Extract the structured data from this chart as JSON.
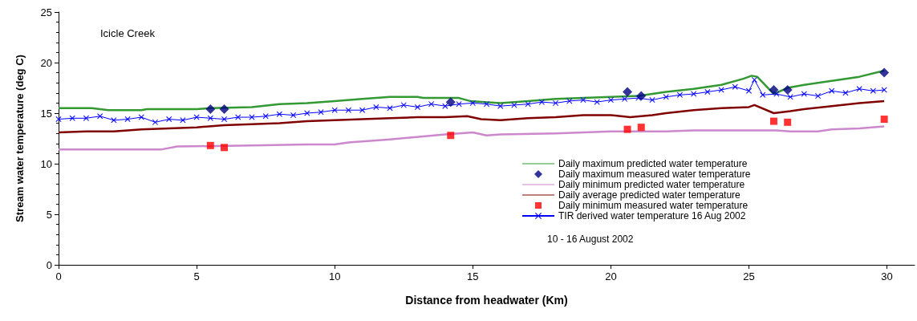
{
  "chart_data": {
    "type": "line",
    "title": "Icicle Creek",
    "xlabel": "Distance from headwater (Km)",
    "ylabel": "Stream water temperature (deg C)",
    "xlim": [
      0,
      31
    ],
    "xticks": [
      0,
      5,
      10,
      15,
      20,
      25,
      30
    ],
    "ylim": [
      0,
      25
    ],
    "yticks": [
      0,
      5,
      10,
      15,
      20,
      25
    ],
    "grid": false,
    "legend": "bottom right",
    "line_style": "solid",
    "annotations": [
      "10 - 16 August 2002"
    ],
    "series": [
      {
        "name": "Daily maximum predicted water temperature",
        "marker": "none",
        "color": "#339933",
        "x": [
          0,
          1.2,
          1.8,
          3,
          3.2,
          5,
          5.5,
          7,
          8,
          9,
          10,
          11,
          12,
          13,
          13.2,
          14.5,
          14.9,
          16,
          17,
          18,
          19,
          20,
          21,
          22,
          23,
          24,
          24.8,
          25.1,
          25.3,
          25.9,
          26.4,
          27,
          28,
          29,
          29.9
        ],
        "values": [
          15.5,
          15.5,
          15.3,
          15.3,
          15.4,
          15.4,
          15.5,
          15.6,
          15.9,
          16.0,
          16.2,
          16.4,
          16.6,
          16.6,
          16.5,
          16.5,
          16.2,
          16.0,
          16.2,
          16.4,
          16.5,
          16.6,
          16.7,
          17.1,
          17.4,
          17.8,
          18.4,
          18.7,
          18.6,
          16.9,
          17.5,
          17.8,
          18.2,
          18.6,
          19.2
        ]
      },
      {
        "name": "Daily maximum measured water temperature",
        "type": "scatter",
        "marker": "diamond",
        "color": "#000080",
        "x": [
          5.5,
          6,
          14.2,
          20.6,
          21.1,
          25.9,
          26.4,
          29.9
        ],
        "values": [
          15.4,
          15.4,
          16.1,
          17.1,
          16.7,
          17.3,
          17.3,
          19.0
        ]
      },
      {
        "name": "Daily minimum predicted water temperature",
        "marker": "none",
        "color": "#cc88cc",
        "x": [
          0,
          3.7,
          4.3,
          7,
          9,
          10,
          10.5,
          12,
          14,
          15,
          15.5,
          16,
          18,
          20,
          22,
          23,
          26,
          26.5,
          27.5,
          28,
          29,
          29.9
        ],
        "values": [
          11.4,
          11.4,
          11.7,
          11.8,
          11.9,
          11.9,
          12.1,
          12.4,
          12.9,
          13.1,
          12.8,
          12.9,
          13.0,
          13.2,
          13.2,
          13.3,
          13.3,
          13.2,
          13.2,
          13.4,
          13.5,
          13.7
        ]
      },
      {
        "name": "Daily average predicted water temperature",
        "marker": "none",
        "color": "#800000",
        "x": [
          0,
          1,
          2,
          3,
          4,
          5,
          6,
          7,
          8,
          9,
          10,
          11,
          12,
          13,
          14,
          14.8,
          15.3,
          16,
          17,
          18,
          19,
          20,
          20.7,
          21.5,
          22,
          23,
          24,
          25,
          25.2,
          25.9,
          26.5,
          27,
          28,
          29,
          29.9
        ],
        "values": [
          13.1,
          13.2,
          13.2,
          13.4,
          13.5,
          13.6,
          13.8,
          13.9,
          14.0,
          14.2,
          14.3,
          14.4,
          14.5,
          14.6,
          14.6,
          14.7,
          14.4,
          14.3,
          14.5,
          14.6,
          14.8,
          14.8,
          14.6,
          14.8,
          15.0,
          15.3,
          15.5,
          15.6,
          15.8,
          15.0,
          15.2,
          15.4,
          15.7,
          16.0,
          16.2
        ]
      },
      {
        "name": "Daily minimum measured water temperature",
        "type": "scatter",
        "marker": "square",
        "color": "#ff0000",
        "x": [
          5.5,
          6,
          14.2,
          20.6,
          21.1,
          25.9,
          26.4,
          29.9
        ],
        "values": [
          11.8,
          11.6,
          12.8,
          13.4,
          13.6,
          14.2,
          14.1,
          14.4
        ]
      },
      {
        "name": "TIR derived water temperature 16 Aug 2002",
        "marker": "cross",
        "color": "#0000ff",
        "x": [
          0,
          0.5,
          1,
          1.5,
          2,
          2.5,
          3,
          3.5,
          4,
          4.5,
          5,
          5.5,
          6,
          6.5,
          7,
          7.5,
          8,
          8.5,
          9,
          9.5,
          10,
          10.5,
          11,
          11.5,
          12,
          12.5,
          13,
          13.5,
          14,
          14.5,
          15,
          15.5,
          16,
          16.5,
          17,
          17.5,
          18,
          18.5,
          19,
          19.5,
          20,
          20.5,
          21,
          21.5,
          22,
          22.5,
          23,
          23.5,
          24,
          24.5,
          25,
          25.2,
          25.5,
          26,
          26.5,
          27,
          27.5,
          28,
          28.5,
          29,
          29.5,
          29.9
        ],
        "values": [
          14.4,
          14.5,
          14.5,
          14.7,
          14.3,
          14.4,
          14.6,
          14.1,
          14.4,
          14.3,
          14.6,
          14.5,
          14.4,
          14.6,
          14.6,
          14.7,
          14.9,
          14.8,
          15.0,
          15.1,
          15.3,
          15.3,
          15.3,
          15.6,
          15.5,
          15.8,
          15.6,
          15.9,
          15.7,
          15.9,
          16.0,
          15.9,
          15.7,
          15.8,
          15.9,
          16.1,
          16.0,
          16.2,
          16.3,
          16.1,
          16.3,
          16.4,
          16.5,
          16.3,
          16.6,
          16.8,
          16.9,
          17.1,
          17.3,
          17.6,
          17.2,
          18.3,
          16.8,
          16.9,
          16.6,
          16.9,
          16.7,
          17.2,
          17.0,
          17.4,
          17.2,
          17.3
        ]
      }
    ]
  }
}
